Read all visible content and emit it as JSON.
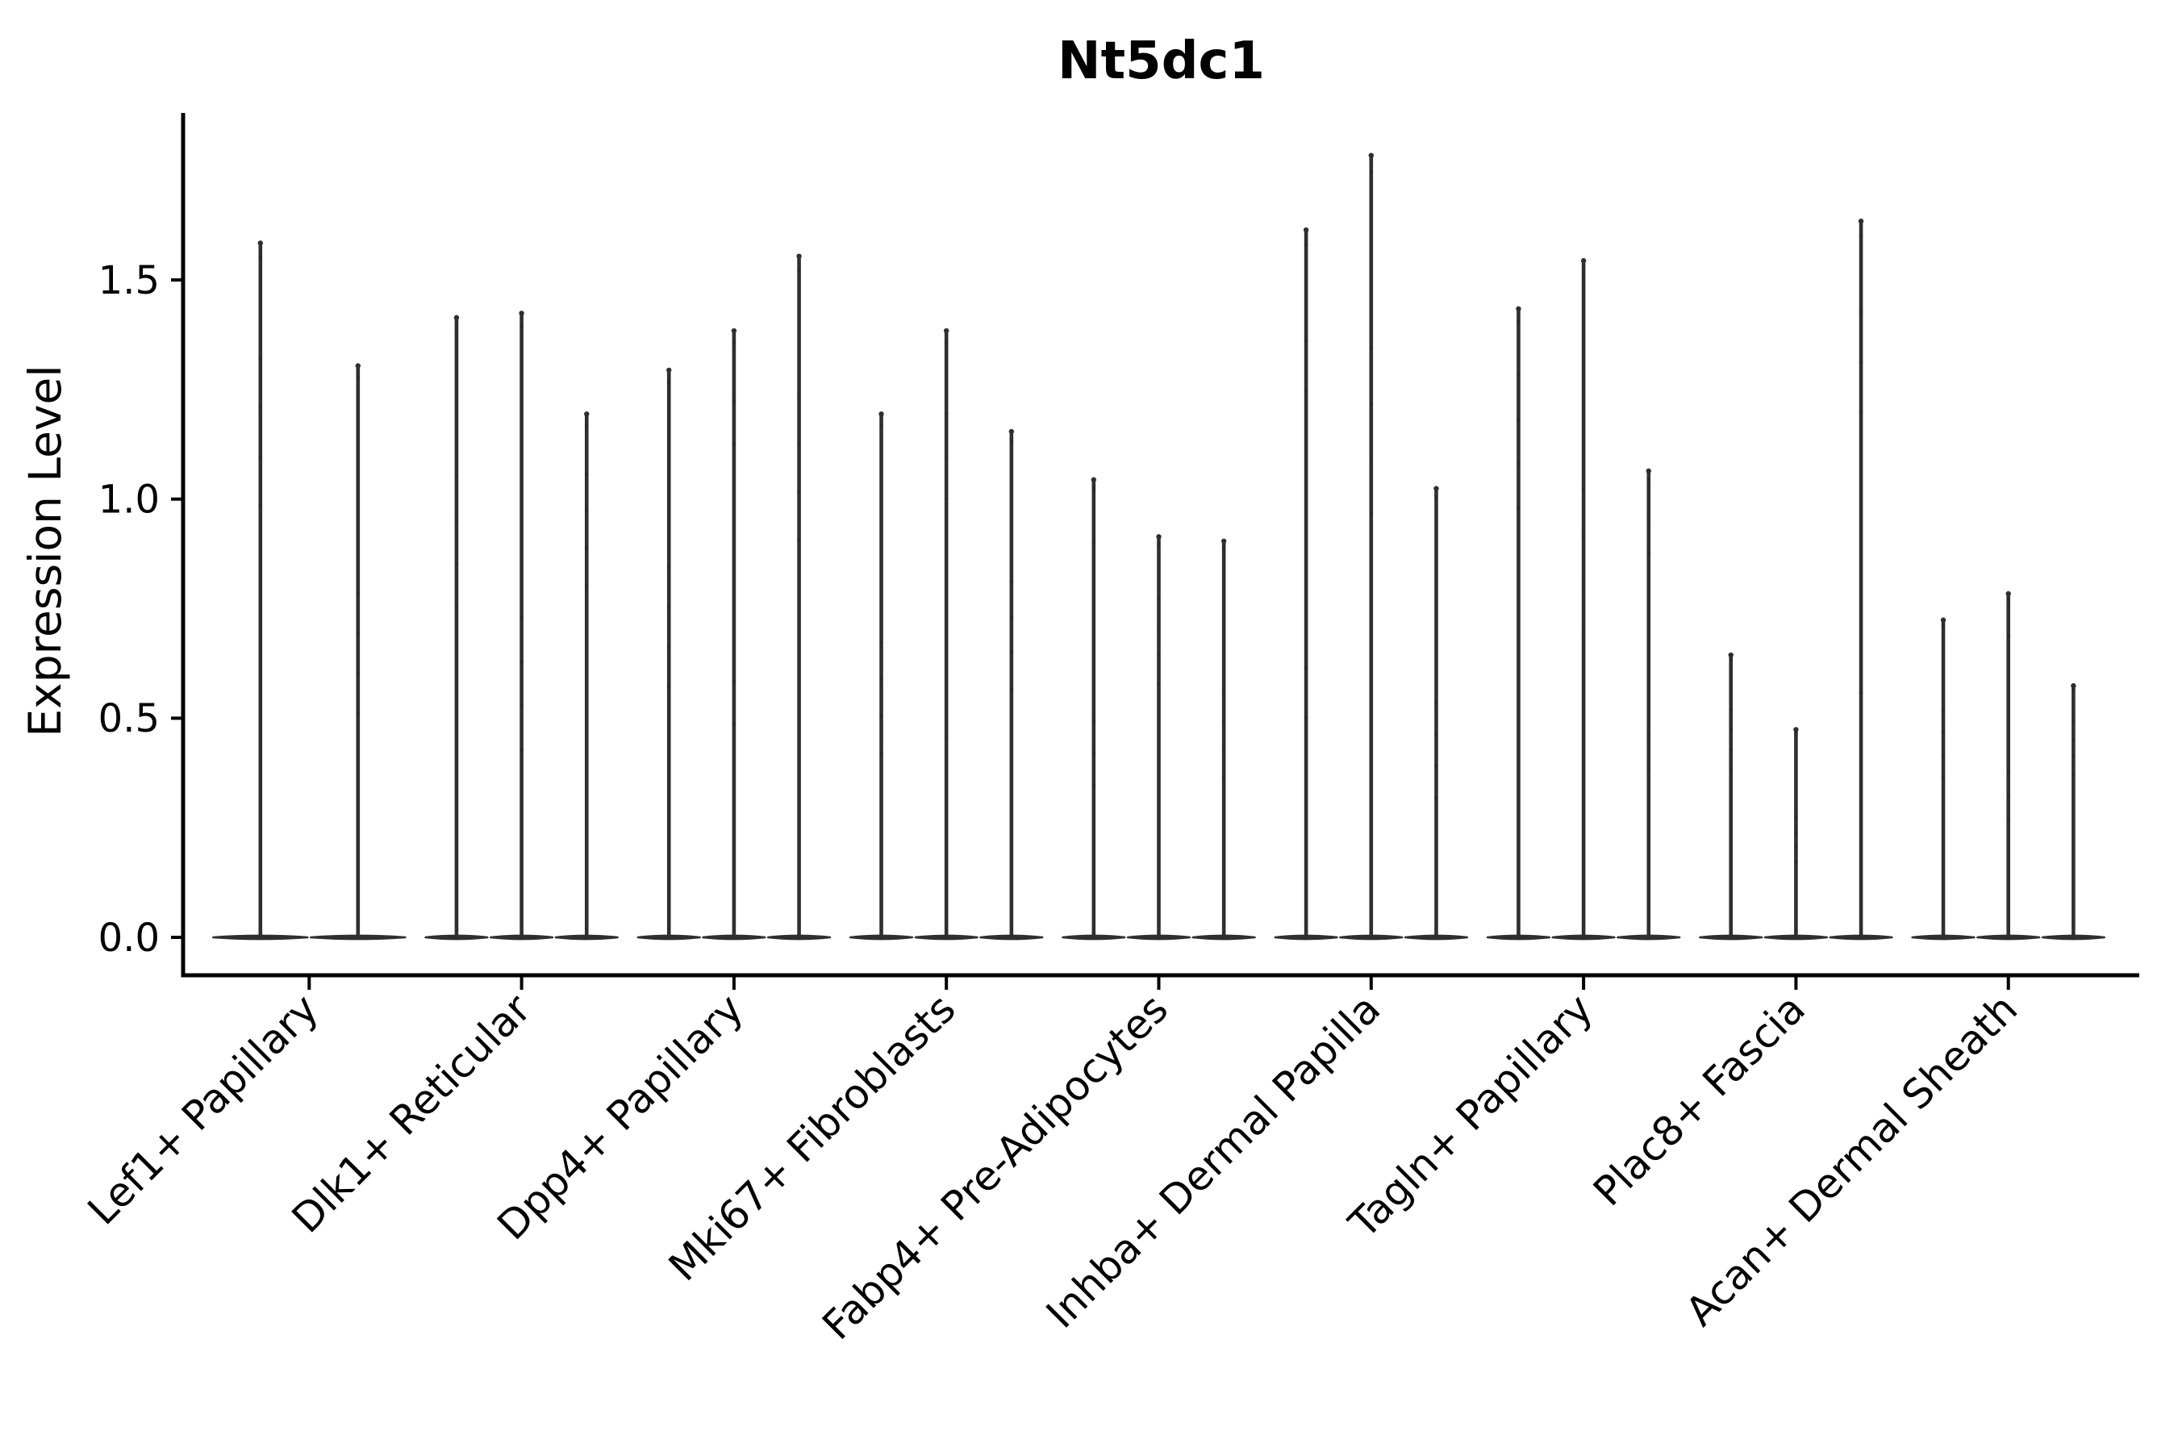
{
  "figure": {
    "background": "#ffffff"
  },
  "chart_data": {
    "type": "violin",
    "title": "Nt5dc1",
    "ylabel": "Expression Level",
    "xlabel": "",
    "ytick_labels": [
      "0.0",
      "0.5",
      "1.0",
      "1.5"
    ],
    "yticks": [
      0.0,
      0.5,
      1.0,
      1.5
    ],
    "ylim": [
      -0.09,
      1.88
    ],
    "grid": false,
    "legend": null,
    "violin_shape": "very narrow spike from 0 up to max value, with wide flat lens of density at 0 for each violin; violins within a group share one merged flat base",
    "categories": [
      {
        "label": "Lef1+ Papillary",
        "violin_max": [
          1.59,
          1.31
        ]
      },
      {
        "label": "Dlk1+ Reticular",
        "violin_max": [
          1.42,
          1.43,
          1.2
        ]
      },
      {
        "label": "Dpp4+ Papillary",
        "violin_max": [
          1.3,
          1.39,
          1.56
        ]
      },
      {
        "label": "Mki67+ Fibroblasts",
        "violin_max": [
          1.2,
          1.39,
          1.16
        ]
      },
      {
        "label": "Fabp4+ Pre-Adipocytes",
        "violin_max": [
          1.05,
          0.92,
          0.91
        ]
      },
      {
        "label": "Inhba+ Dermal Papilla",
        "violin_max": [
          1.62,
          1.79,
          1.03
        ]
      },
      {
        "label": "Tagln+ Papillary",
        "violin_max": [
          1.44,
          1.55,
          1.07
        ]
      },
      {
        "label": "Plac8+ Fascia",
        "violin_max": [
          0.65,
          0.48,
          1.64
        ]
      },
      {
        "label": "Acan+ Dermal Sheath",
        "violin_max": [
          0.73,
          0.79,
          0.58
        ]
      }
    ],
    "xtick_rotation_deg": 45,
    "colors": {
      "ink": "#000000",
      "violin": "#2f2f2f",
      "jitter_dot": "#1a1a1a"
    }
  }
}
